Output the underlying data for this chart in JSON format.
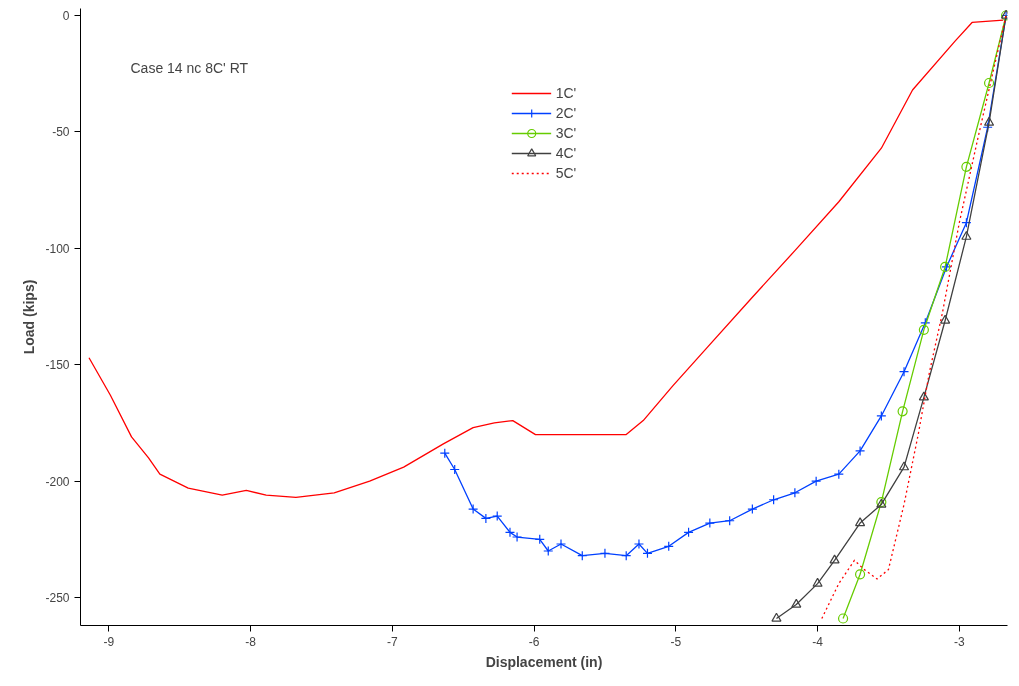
{
  "chart_data": {
    "type": "line",
    "xlabel": "Displacement (in)",
    "ylabel": "Load (kips)",
    "annotations": [
      "Case 14 nc 8C' RT"
    ],
    "xlim": [
      -9.2,
      -2.66
    ],
    "ylim": [
      -262,
      3
    ],
    "xticks": [
      -9,
      -8,
      -7,
      -6,
      -5,
      -4,
      -3
    ],
    "yticks": [
      -250,
      -200,
      -150,
      -100,
      -50,
      0
    ],
    "grid": false,
    "legend": "top",
    "series": [
      {
        "name": "1C'",
        "color": "#ff0000",
        "marker": "none",
        "line_style": "solid",
        "x": [
          -9.14,
          -8.99,
          -8.84,
          -8.72,
          -8.64,
          -8.44,
          -8.2,
          -8.03,
          -7.89,
          -7.68,
          -7.41,
          -7.16,
          -6.92,
          -6.64,
          -6.43,
          -6.28,
          -6.15,
          -5.99,
          -5.9,
          -5.69,
          -5.44,
          -5.35,
          -5.23,
          -5.02,
          -4.77,
          -4.46,
          -4.16,
          -3.85,
          -3.55,
          -3.33,
          -3.03,
          -2.91,
          -2.69
        ],
        "values": [
          -147,
          -163,
          -181,
          -190,
          -197,
          -203,
          -206,
          -204,
          -206,
          -207,
          -205,
          -200,
          -194,
          -184,
          -177,
          -175,
          -174,
          -180,
          -180,
          -180,
          -180,
          -180,
          -174,
          -159,
          -142,
          -121,
          -101,
          -80,
          -57,
          -32,
          -11,
          -3,
          -2
        ]
      },
      {
        "name": "2C'",
        "color": "#0040ff",
        "marker": "cross",
        "line_style": "solid",
        "x": [
          -6.63,
          -6.56,
          -6.43,
          -6.34,
          -6.26,
          -6.17,
          -6.12,
          -5.96,
          -5.9,
          -5.81,
          -5.66,
          -5.5,
          -5.35,
          -5.26,
          -5.2,
          -5.05,
          -4.91,
          -4.76,
          -4.62,
          -4.46,
          -4.31,
          -4.16,
          -4.01,
          -3.85,
          -3.7,
          -3.55,
          -3.39,
          -3.24,
          -3.09,
          -2.95,
          -2.8,
          -2.67
        ],
        "values": [
          -188,
          -195,
          -212,
          -216,
          -215,
          -222,
          -224,
          -225,
          -230,
          -227,
          -232,
          -231,
          -232,
          -227,
          -231,
          -228,
          -222,
          -218,
          -217,
          -212,
          -208,
          -205,
          -200,
          -197,
          -187,
          -172,
          -153,
          -132,
          -108,
          -89,
          -48,
          0
        ]
      },
      {
        "name": "3C'",
        "color": "#66cc00",
        "marker": "circle",
        "line_style": "solid",
        "x": [
          -3.82,
          -3.7,
          -3.55,
          -3.4,
          -3.25,
          -3.1,
          -2.95,
          -2.79,
          -2.67
        ],
        "values": [
          -259,
          -240,
          -209,
          -170,
          -135,
          -108,
          -65,
          -29,
          0
        ]
      },
      {
        "name": "4C'",
        "color": "#404040",
        "marker": "triangle",
        "line_style": "solid",
        "x": [
          -4.29,
          -4.15,
          -4.0,
          -3.88,
          -3.7,
          -3.55,
          -3.39,
          -3.25,
          -3.1,
          -2.95,
          -2.79,
          -2.67
        ],
        "values": [
          -259,
          -253,
          -244,
          -234,
          -218,
          -210,
          -194,
          -164,
          -131,
          -95,
          -46,
          0
        ]
      },
      {
        "name": "5C'",
        "color": "#ff0000",
        "marker": "none",
        "line_style": "dotted",
        "x": [
          -3.97,
          -3.85,
          -3.74,
          -3.67,
          -3.58,
          -3.5,
          -3.39,
          -3.29,
          -3.21,
          -3.12,
          -3.0,
          -2.87,
          -2.75,
          -2.67
        ],
        "values": [
          -259,
          -244,
          -234,
          -238,
          -242,
          -238,
          -210,
          -180,
          -153,
          -128,
          -89,
          -53,
          -21,
          0
        ]
      }
    ]
  }
}
